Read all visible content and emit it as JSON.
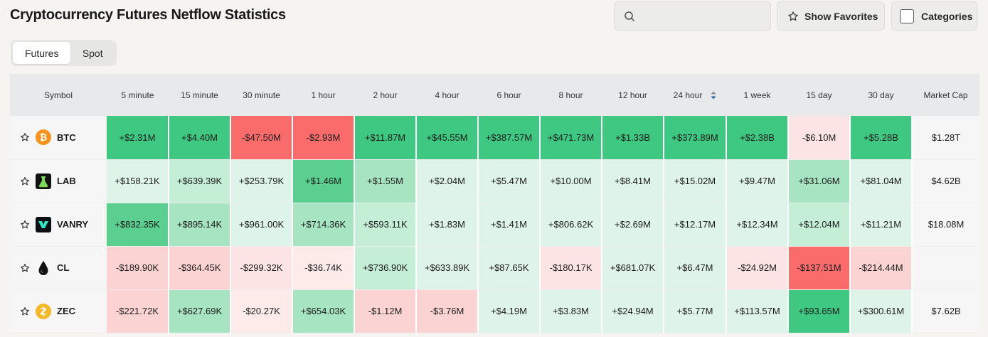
{
  "page": {
    "title": "Cryptocurrency Futures Netflow Statistics"
  },
  "search": {
    "placeholder": "",
    "value": ""
  },
  "buttons": {
    "favorites": "Show Favorites",
    "categories": "Categories"
  },
  "tabs": [
    "Futures",
    "Spot"
  ],
  "active_tab": "Futures",
  "table": {
    "headers": [
      "Symbol",
      "5 minute",
      "15 minute",
      "30 minute",
      "1 hour",
      "2 hour",
      "4 hour",
      "6 hour",
      "8 hour",
      "12 hour",
      "24 hour",
      "1 week",
      "15 day",
      "30 day",
      "Market Cap"
    ],
    "sorted_column": "24 hour",
    "rows": [
      {
        "symbol": "BTC",
        "icon": "bitcoin-icon",
        "values": [
          "+$2.31M",
          "+$4.40M",
          "-$47.50M",
          "-$2.93M",
          "+$11.87M",
          "+$45.55M",
          "+$387.57M",
          "+$471.73M",
          "+$1.33B",
          "+$373.89M",
          "+$2.38B",
          "-$6.10M",
          "+$5.28B"
        ],
        "shades": [
          "g5",
          "g5",
          "r5",
          "r5",
          "g5",
          "g5",
          "g5",
          "g5",
          "g5",
          "g5",
          "g5",
          "r2",
          "g5"
        ],
        "market_cap": "$1.28T"
      },
      {
        "symbol": "LAB",
        "icon": "lab-icon",
        "values": [
          "+$158.21K",
          "+$639.39K",
          "+$253.79K",
          "+$1.46M",
          "+$1.55M",
          "+$2.04M",
          "+$5.47M",
          "+$10.00M",
          "+$8.41M",
          "+$15.02M",
          "+$9.47M",
          "+$31.06M",
          "+$81.04M"
        ],
        "shades": [
          "g1",
          "g2",
          "g1",
          "g4",
          "g3",
          "g1",
          "g1",
          "g1",
          "g1",
          "g1",
          "g1",
          "g3",
          "g1"
        ],
        "market_cap": "$4.62B"
      },
      {
        "symbol": "VANRY",
        "icon": "vanry-icon",
        "values": [
          "+$832.35K",
          "+$895.14K",
          "+$961.00K",
          "+$714.36K",
          "+$593.11K",
          "+$1.83M",
          "+$1.41M",
          "+$806.62K",
          "+$2.69M",
          "+$12.17M",
          "+$12.34M",
          "+$12.04M",
          "+$11.21M"
        ],
        "shades": [
          "g4",
          "g3",
          "g1",
          "g3",
          "g2",
          "g1",
          "g1",
          "g1",
          "g1",
          "g1",
          "g1",
          "g2",
          "g1"
        ],
        "market_cap": "$18.08M"
      },
      {
        "symbol": "CL",
        "icon": "oil-drop-icon",
        "values": [
          "-$189.90K",
          "-$364.45K",
          "-$299.32K",
          "-$36.74K",
          "+$736.90K",
          "+$633.89K",
          "+$87.65K",
          "-$180.17K",
          "+$681.07K",
          "+$6.47M",
          "-$24.92M",
          "-$137.51M",
          "-$214.44M"
        ],
        "shades": [
          "r3",
          "r3",
          "r2",
          "r1",
          "g2",
          "g1",
          "g1",
          "r2",
          "g1",
          "g1",
          "r2",
          "r5",
          "r3"
        ],
        "market_cap": ""
      },
      {
        "symbol": "ZEC",
        "icon": "zcash-icon",
        "values": [
          "-$221.72K",
          "+$627.69K",
          "-$20.27K",
          "+$654.03K",
          "-$1.12M",
          "-$3.76M",
          "+$4.19M",
          "+$3.83M",
          "+$24.94M",
          "+$5.77M",
          "+$113.57M",
          "+$93.65M",
          "+$300.61M"
        ],
        "shades": [
          "r3",
          "g3",
          "r1",
          "g3",
          "r3",
          "r3",
          "g1",
          "g1",
          "g1",
          "g1",
          "g1",
          "g5",
          "g1"
        ],
        "market_cap": "$7.62B"
      }
    ]
  },
  "colors": {
    "positive_strong": "#3fc881",
    "negative_strong": "#fa6c6c",
    "sort_arrow": "#1f5fa8"
  }
}
